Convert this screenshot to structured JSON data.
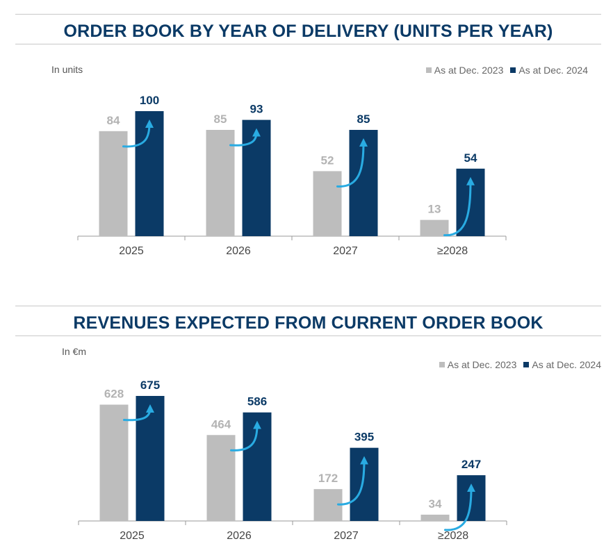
{
  "colors": {
    "dec2023": "#bdbdbd",
    "dec2024": "#0b3a66",
    "arrow": "#29abe2",
    "title": "#0b3a66"
  },
  "chart_data": [
    {
      "type": "bar",
      "title": "ORDER BOOK BY YEAR OF DELIVERY (UNITS PER YEAR)",
      "unit_label": "In units",
      "categories": [
        "2025",
        "2026",
        "2027",
        "≥2028"
      ],
      "series": [
        {
          "name": "As at Dec. 2023",
          "values": [
            84,
            85,
            52,
            13
          ],
          "labels": [
            "84",
            "85",
            "52",
            "13"
          ]
        },
        {
          "name": "As at Dec. 2024",
          "values": [
            100,
            93,
            85,
            54
          ],
          "labels": [
            "100",
            "93",
            "85",
            "54"
          ]
        }
      ],
      "ylim": [
        0,
        100
      ],
      "legend_position": "top-right",
      "annotations": "curved arrows from 2023 bar to 2024 bar in each category"
    },
    {
      "type": "bar",
      "title": "REVENUES EXPECTED FROM CURRENT ORDER BOOK",
      "unit_label": "In €m",
      "categories": [
        "2025",
        "2026",
        "2027",
        "≥2028"
      ],
      "series": [
        {
          "name": "As at Dec. 2023",
          "values": [
            628,
            464,
            172,
            34
          ],
          "labels": [
            "628",
            "464",
            "172",
            "34"
          ]
        },
        {
          "name": "As at Dec. 2024",
          "values": [
            675,
            586,
            395,
            247
          ],
          "labels": [
            "675",
            "586",
            "395",
            "247"
          ]
        }
      ],
      "ylim": [
        0,
        675
      ],
      "legend_position": "top-right",
      "annotations": "curved arrows from 2023 bar to 2024 bar in each category"
    }
  ]
}
